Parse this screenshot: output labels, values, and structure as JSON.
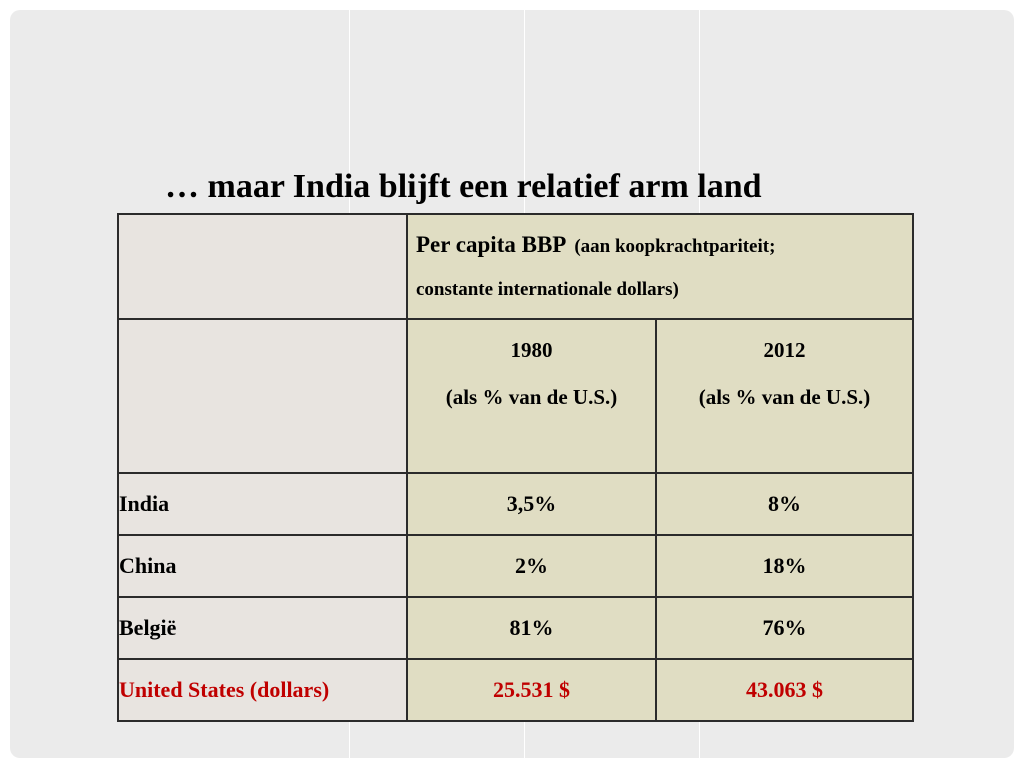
{
  "title": "… maar India blijft een relatief arm land",
  "table": {
    "header": {
      "main": "Per capita BBP",
      "note_part1": "(aan koopkrachtparitei",
      "note_part1_end": "t;",
      "note_part2": "constante internationale dollars)"
    },
    "columns": [
      {
        "year": "1980",
        "unit": "(als % van de U.S.)"
      },
      {
        "year": "2012",
        "unit": "(als % van de U.S.)"
      }
    ],
    "rows": [
      {
        "label": "India",
        "v1980": "3,5%",
        "v2012": "8%"
      },
      {
        "label": "China",
        "v1980": "2%",
        "v2012": "18%"
      },
      {
        "label": "België",
        "v1980": "81%",
        "v2012": "76%"
      },
      {
        "label": "United States (dollars)",
        "v1980": "25.531 $",
        "v2012": "43.063 $"
      }
    ]
  },
  "colors": {
    "slide_background": "#ebebeb",
    "label_cell": "#e8e4e0",
    "data_cell": "#e0ddc3",
    "highlight_text": "#c00000"
  }
}
